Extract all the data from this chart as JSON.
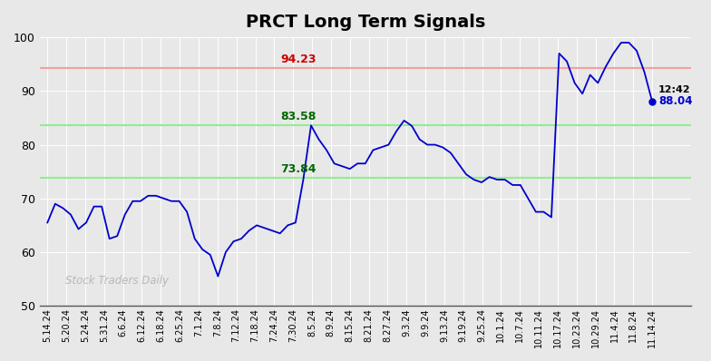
{
  "title": "PRCT Long Term Signals",
  "title_fontsize": 14,
  "title_fontweight": "bold",
  "hline_red": 94.23,
  "hline_green_upper": 83.58,
  "hline_green_lower": 73.84,
  "hline_red_color": "#f5a0a0",
  "hline_green_color": "#90ee90",
  "red_label": "94.23",
  "green_upper_label": "83.58",
  "green_lower_label": "73.84",
  "annotation_time": "12:42",
  "annotation_price": "88.04",
  "annotation_price_val": 88.04,
  "watermark": "Stock Traders Daily",
  "background_color": "#e8e8e8",
  "plot_bg_color": "#e8e8e8",
  "line_color": "#0000cc",
  "ylim": [
    50,
    100
  ],
  "yticks": [
    50,
    60,
    70,
    80,
    90,
    100
  ],
  "x_labels": [
    "5.14.24",
    "5.20.24",
    "5.24.24",
    "5.31.24",
    "6.6.24",
    "6.12.24",
    "6.18.24",
    "6.25.24",
    "7.1.24",
    "7.8.24",
    "7.12.24",
    "7.18.24",
    "7.24.24",
    "7.30.24",
    "8.5.24",
    "8.9.24",
    "8.15.24",
    "8.21.24",
    "8.27.24",
    "9.3.24",
    "9.9.24",
    "9.13.24",
    "9.19.24",
    "9.25.24",
    "10.1.24",
    "10.7.24",
    "10.11.24",
    "10.17.24",
    "10.23.24",
    "10.29.24",
    "11.4.24",
    "11.8.24",
    "11.14.24"
  ],
  "y_values": [
    65.5,
    69.0,
    68.2,
    67.0,
    64.3,
    65.5,
    68.5,
    68.5,
    62.5,
    63.0,
    67.0,
    69.5,
    69.5,
    70.5,
    70.5,
    70.0,
    69.5,
    69.5,
    67.5,
    62.5,
    60.5,
    59.5,
    55.5,
    60.0,
    62.0,
    62.5,
    64.0,
    65.0,
    64.5,
    64.0,
    63.5,
    65.0,
    65.5,
    73.5,
    83.58,
    81.0,
    79.0,
    76.5,
    76.0,
    75.5,
    76.5,
    76.5,
    79.0,
    79.5,
    80.0,
    82.5,
    84.5,
    83.5,
    81.0,
    80.0,
    80.0,
    79.5,
    78.5,
    76.5,
    74.5,
    73.5,
    73.0,
    74.0,
    73.5,
    73.5,
    72.5,
    72.5,
    70.0,
    67.5,
    67.5,
    66.5,
    97.0,
    95.5,
    91.5,
    89.5,
    93.0,
    91.5,
    94.5,
    97.0,
    99.0,
    99.0,
    97.5,
    93.5,
    88.04
  ]
}
